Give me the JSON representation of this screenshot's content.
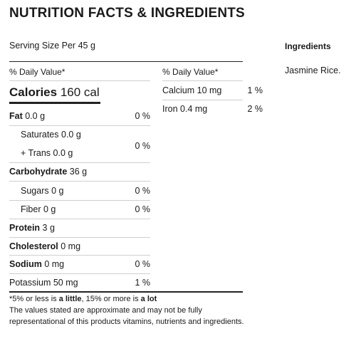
{
  "title": "NUTRITION FACTS & INGREDIENTS",
  "serving_size": "Serving Size Per 45 g",
  "daily_value_header": "% Daily Value*",
  "calories": {
    "label": "Calories",
    "value": "160 cal"
  },
  "left_rows": [
    {
      "name": "Fat",
      "amount": "0.0 g",
      "pct": "0 %"
    },
    {
      "name": "Saturates",
      "amount": "0.0 g"
    },
    {
      "name": "+ Trans",
      "amount": "0.0 g",
      "pct": "0 %"
    },
    {
      "name": "Carbohydrate",
      "amount": "36 g"
    },
    {
      "name": "Sugars",
      "amount": "0 g",
      "pct": "0 %"
    },
    {
      "name": "Fiber",
      "amount": "0 g",
      "pct": "0 %"
    },
    {
      "name": "Protein",
      "amount": "3 g"
    },
    {
      "name": "Cholesterol",
      "amount": "0 mg"
    },
    {
      "name": "Sodium",
      "amount": "0 mg",
      "pct": "0 %"
    },
    {
      "name": "Potassium",
      "amount": "50 mg",
      "pct": "1 %"
    }
  ],
  "right_header": "% Daily Value*",
  "right_rows": [
    {
      "name": "Calcium",
      "amount": "10 mg",
      "pct": "1 %"
    },
    {
      "name": "Iron",
      "amount": "0.4 mg",
      "pct": "2 %"
    }
  ],
  "footnote": {
    "part1": "*5% or less is ",
    "little": "a little",
    "part2": ", 15% or more is ",
    "lot": "a lot",
    "disclaimer_line1": "The values stated are approximate and may not be fully",
    "disclaimer_line2": "representational of this products vitamins, nutrients and ingredients."
  },
  "ingredients": {
    "title": "Ingredients",
    "text": "Jasmine Rice."
  }
}
